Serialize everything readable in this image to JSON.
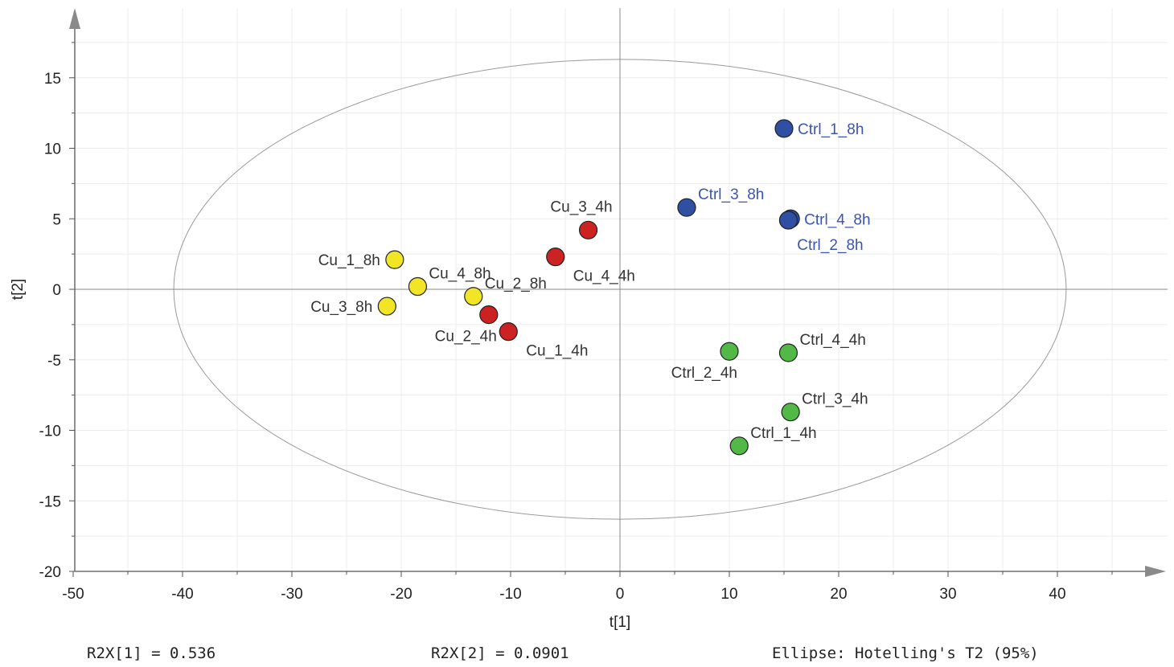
{
  "chart_data": {
    "type": "scatter",
    "xlabel": "t[1]",
    "ylabel": "t[2]",
    "xlim": [
      -50,
      50
    ],
    "ylim": [
      -20,
      20
    ],
    "x_ticks": [
      -50,
      -40,
      -30,
      -20,
      -10,
      0,
      10,
      20,
      30,
      40
    ],
    "y_ticks": [
      -20,
      -15,
      -10,
      -5,
      0,
      5,
      10,
      15
    ],
    "grid": true,
    "ellipse": {
      "cx": 0,
      "cy": 0,
      "rx": 40.8,
      "ry": 16.3
    },
    "groups": [
      {
        "color": "#2f4fa3",
        "label_color": "#3a55b0"
      },
      {
        "color": "#cc2222",
        "label_color": "#333333"
      },
      {
        "color": "#f2e526",
        "label_color": "#333333"
      },
      {
        "color": "#52b846",
        "label_color": "#333333"
      }
    ],
    "points": [
      {
        "label": "Ctrl_1_8h",
        "x": 15.0,
        "y": 11.4,
        "group": 0,
        "anchor": "right"
      },
      {
        "label": "Ctrl_3_8h",
        "x": 6.1,
        "y": 5.8,
        "group": 0,
        "anchor": "upper-right"
      },
      {
        "label": "Ctrl_4_8h",
        "x": 15.6,
        "y": 5.0,
        "group": 0,
        "anchor": "right"
      },
      {
        "label": "Ctrl_2_8h",
        "x": 15.4,
        "y": 4.9,
        "group": 0,
        "anchor": "below"
      },
      {
        "label": "Cu_3_4h",
        "x": -2.9,
        "y": 4.2,
        "group": 1,
        "anchor": "upper-left"
      },
      {
        "label": "Cu_4_4h",
        "x": -5.9,
        "y": 2.3,
        "group": 1,
        "anchor": "lower-right"
      },
      {
        "label": "Cu_2_4h",
        "x": -12.0,
        "y": -1.8,
        "group": 1,
        "anchor": "lower-left"
      },
      {
        "label": "Cu_1_4h",
        "x": -10.2,
        "y": -3.0,
        "group": 1,
        "anchor": "lower-right"
      },
      {
        "label": "Cu_1_8h",
        "x": -20.6,
        "y": 2.1,
        "group": 2,
        "anchor": "left"
      },
      {
        "label": "Cu_4_8h",
        "x": -18.5,
        "y": 0.2,
        "group": 2,
        "anchor": "upper-right"
      },
      {
        "label": "Cu_3_8h",
        "x": -21.3,
        "y": -1.2,
        "group": 2,
        "anchor": "left"
      },
      {
        "label": "Cu_2_8h",
        "x": -13.4,
        "y": -0.5,
        "group": 2,
        "anchor": "upper-right"
      },
      {
        "label": "Ctrl_2_4h",
        "x": 10.0,
        "y": -4.4,
        "group": 3,
        "anchor": "lower-left"
      },
      {
        "label": "Ctrl_4_4h",
        "x": 15.4,
        "y": -4.5,
        "group": 3,
        "anchor": "upper-right"
      },
      {
        "label": "Ctrl_3_4h",
        "x": 15.6,
        "y": -8.7,
        "group": 3,
        "anchor": "upper-right"
      },
      {
        "label": "Ctrl_1_4h",
        "x": 10.9,
        "y": -11.1,
        "group": 3,
        "anchor": "upper-right"
      }
    ]
  },
  "footer": {
    "r2x1": "R2X[1] = 0.536",
    "r2x2": "R2X[2] = 0.0901",
    "ellipse_note": "Ellipse: Hotelling's T2 (95%)"
  }
}
